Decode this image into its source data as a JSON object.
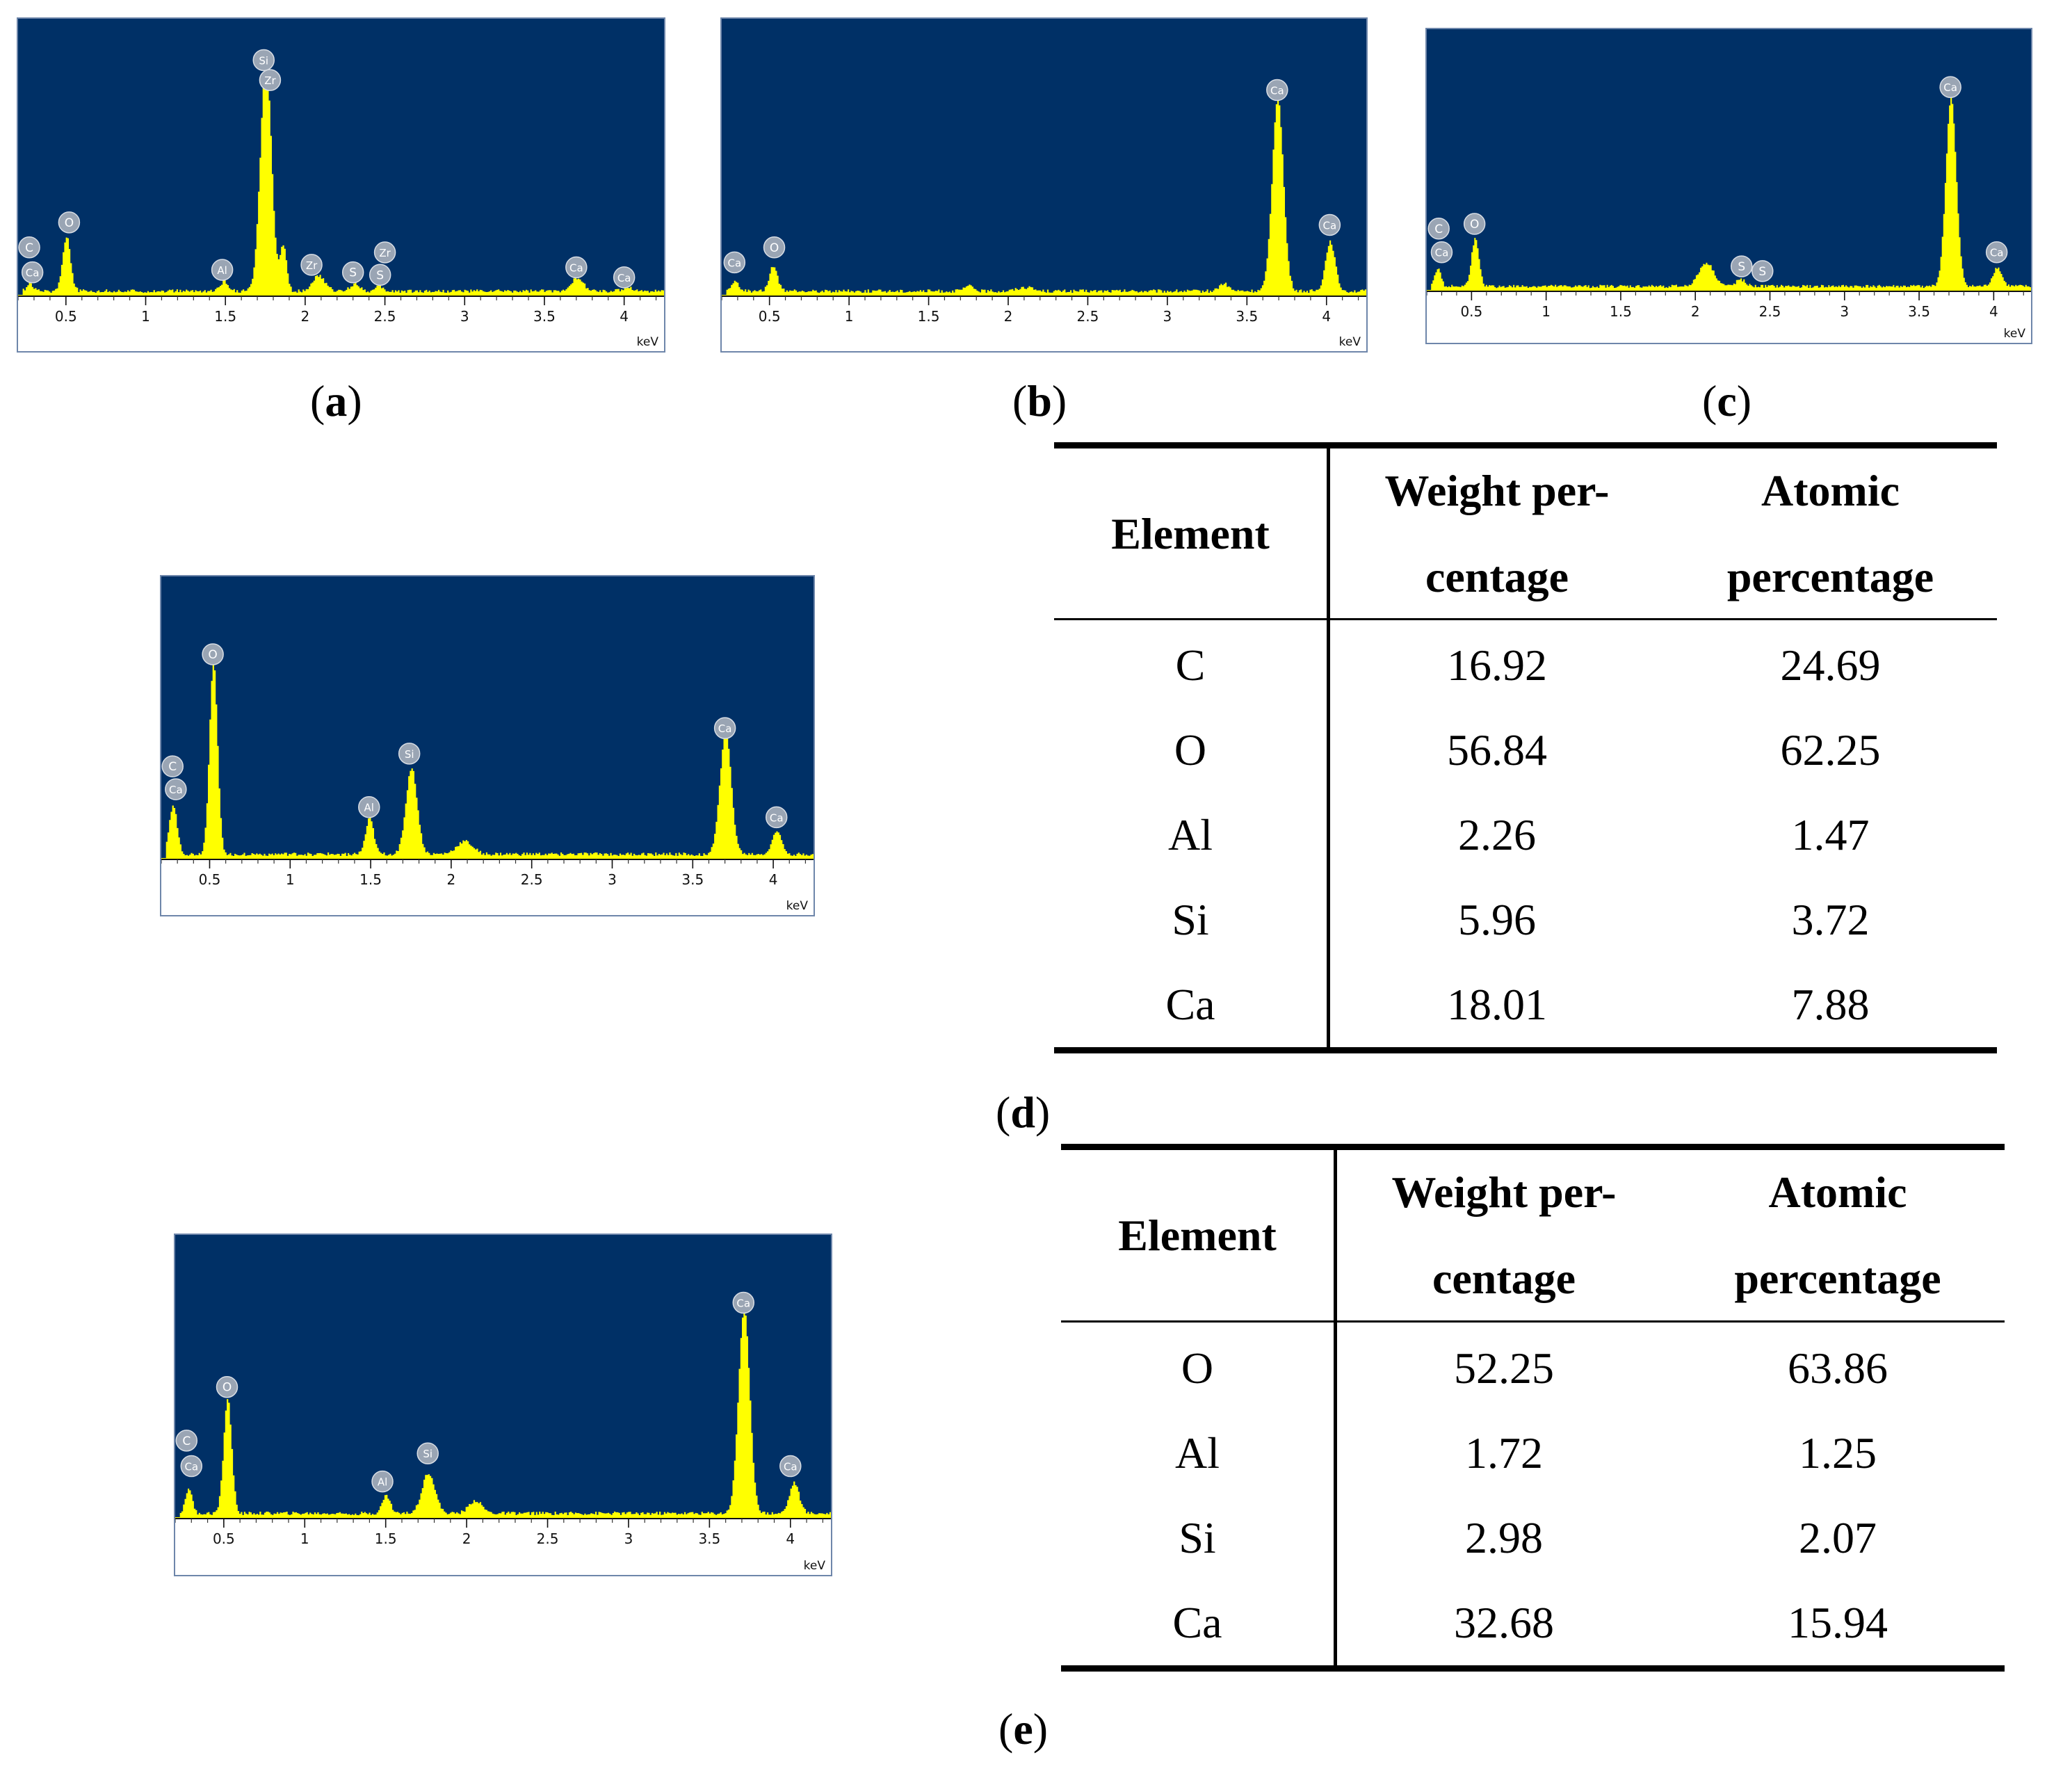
{
  "figure": {
    "panel_labels": [
      "a",
      "b",
      "c",
      "d",
      "e"
    ],
    "axis_unit": "keV"
  },
  "colors": {
    "plot_background": "#003066",
    "spectrum_fill": "#ffff00",
    "marker_fill": "#9aa5b4",
    "frame": "#6e86aa"
  },
  "chart_data": [
    {
      "id": "a",
      "type": "area",
      "title": "(a)",
      "xlabel": "keV",
      "ylabel": "",
      "xlim": [
        0.2,
        4.25
      ],
      "ylim": [
        0,
        100
      ],
      "ticks": [
        "0.5",
        "1",
        "1.5",
        "2",
        "2.5",
        "3",
        "3.5",
        "4"
      ],
      "peaks": [
        [
          0.27,
          3,
          0.02
        ],
        [
          0.5,
          22,
          0.025
        ],
        [
          1.49,
          4,
          0.025
        ],
        [
          1.75,
          92,
          0.035
        ],
        [
          1.86,
          18,
          0.02
        ],
        [
          2.08,
          6,
          0.04
        ],
        [
          2.31,
          3,
          0.03
        ],
        [
          2.46,
          2,
          0.02
        ],
        [
          3.7,
          5,
          0.04
        ],
        [
          4.02,
          1.5,
          0.03
        ]
      ],
      "markers": [
        {
          "label": "C",
          "x": 0.27,
          "y": 19
        },
        {
          "label": "Ca",
          "x": 0.29,
          "y": 9
        },
        {
          "label": "O",
          "x": 0.52,
          "y": 29
        },
        {
          "label": "Al",
          "x": 1.48,
          "y": 10
        },
        {
          "label": "Si",
          "x": 1.74,
          "y": 94
        },
        {
          "label": "Zr",
          "x": 1.78,
          "y": 86
        },
        {
          "label": "Zr",
          "x": 2.04,
          "y": 12
        },
        {
          "label": "S",
          "x": 2.3,
          "y": 9
        },
        {
          "label": "S",
          "x": 2.47,
          "y": 8
        },
        {
          "label": "Zr",
          "x": 2.5,
          "y": 17
        },
        {
          "label": "Ca",
          "x": 3.7,
          "y": 11
        },
        {
          "label": "Ca",
          "x": 4.0,
          "y": 7
        }
      ]
    },
    {
      "id": "b",
      "type": "area",
      "title": "(b)",
      "xlabel": "keV",
      "ylabel": "",
      "xlim": [
        0.2,
        4.25
      ],
      "ylim": [
        0,
        100
      ],
      "ticks": [
        "0.5",
        "1",
        "1.5",
        "2",
        "2.5",
        "3",
        "3.5",
        "4"
      ],
      "peaks": [
        [
          0.28,
          4,
          0.02
        ],
        [
          0.52,
          10,
          0.025
        ],
        [
          1.75,
          2,
          0.03
        ],
        [
          2.1,
          1.5,
          0.05
        ],
        [
          3.35,
          3,
          0.03
        ],
        [
          3.69,
          78,
          0.035
        ],
        [
          4.02,
          20,
          0.03
        ]
      ],
      "markers": [
        {
          "label": "Ca",
          "x": 0.28,
          "y": 13
        },
        {
          "label": "O",
          "x": 0.53,
          "y": 19
        },
        {
          "label": "Ca",
          "x": 3.69,
          "y": 82
        },
        {
          "label": "Ca",
          "x": 4.02,
          "y": 28
        }
      ]
    },
    {
      "id": "c",
      "type": "area",
      "title": "(c)",
      "xlabel": "keV",
      "ylabel": "",
      "xlim": [
        0.2,
        4.25
      ],
      "ylim": [
        0,
        100
      ],
      "ticks": [
        "0.5",
        "1",
        "1.5",
        "2",
        "2.5",
        "3",
        "3.5",
        "4"
      ],
      "peaks": [
        [
          0.27,
          8,
          0.02
        ],
        [
          0.52,
          20,
          0.025
        ],
        [
          2.07,
          10,
          0.05
        ],
        [
          2.3,
          3,
          0.03
        ],
        [
          3.71,
          80,
          0.035
        ],
        [
          4.02,
          8,
          0.03
        ]
      ],
      "markers": [
        {
          "label": "C",
          "x": 0.28,
          "y": 26
        },
        {
          "label": "Ca",
          "x": 0.3,
          "y": 16
        },
        {
          "label": "O",
          "x": 0.52,
          "y": 28
        },
        {
          "label": "S",
          "x": 2.31,
          "y": 10
        },
        {
          "label": "S",
          "x": 2.45,
          "y": 8
        },
        {
          "label": "Ca",
          "x": 3.71,
          "y": 86
        },
        {
          "label": "Ca",
          "x": 4.02,
          "y": 16
        }
      ]
    },
    {
      "id": "d",
      "type": "area",
      "title": "(d)",
      "xlabel": "keV",
      "ylabel": "",
      "xlim": [
        0.2,
        4.25
      ],
      "ylim": [
        0,
        100
      ],
      "ticks": [
        "0.5",
        "1",
        "1.5",
        "2",
        "2.5",
        "3",
        "3.5",
        "4"
      ],
      "peaks": [
        [
          0.27,
          19,
          0.025
        ],
        [
          0.52,
          76,
          0.025
        ],
        [
          1.49,
          14,
          0.025
        ],
        [
          1.75,
          34,
          0.035
        ],
        [
          2.08,
          5,
          0.05
        ],
        [
          3.7,
          48,
          0.035
        ],
        [
          4.02,
          9,
          0.03
        ]
      ],
      "markers": [
        {
          "label": "C",
          "x": 0.27,
          "y": 36
        },
        {
          "label": "Ca",
          "x": 0.29,
          "y": 27
        },
        {
          "label": "O",
          "x": 0.52,
          "y": 80
        },
        {
          "label": "Al",
          "x": 1.49,
          "y": 20
        },
        {
          "label": "Si",
          "x": 1.74,
          "y": 41
        },
        {
          "label": "Ca",
          "x": 3.7,
          "y": 51
        },
        {
          "label": "Ca",
          "x": 4.02,
          "y": 16
        }
      ]
    },
    {
      "id": "e",
      "type": "area",
      "title": "(e)",
      "xlabel": "keV",
      "ylabel": "",
      "xlim": [
        0.2,
        4.25
      ],
      "ylim": [
        0,
        100
      ],
      "ticks": [
        "0.5",
        "1",
        "1.5",
        "2",
        "2.5",
        "3",
        "3.5",
        "4"
      ],
      "peaks": [
        [
          0.28,
          10,
          0.02
        ],
        [
          0.52,
          45,
          0.025
        ],
        [
          1.5,
          7,
          0.025
        ],
        [
          1.76,
          16,
          0.04
        ],
        [
          2.05,
          5,
          0.04
        ],
        [
          3.71,
          80,
          0.035
        ],
        [
          4.02,
          12,
          0.03
        ]
      ],
      "markers": [
        {
          "label": "C",
          "x": 0.27,
          "y": 30
        },
        {
          "label": "Ca",
          "x": 0.3,
          "y": 20
        },
        {
          "label": "O",
          "x": 0.52,
          "y": 51
        },
        {
          "label": "Al",
          "x": 1.48,
          "y": 14
        },
        {
          "label": "Si",
          "x": 1.76,
          "y": 25
        },
        {
          "label": "Ca",
          "x": 3.71,
          "y": 84
        },
        {
          "label": "Ca",
          "x": 4.0,
          "y": 20
        }
      ]
    }
  ],
  "table_d": {
    "headers": [
      "Element",
      "Weight per-",
      "centage",
      "Atomic",
      "percentage"
    ],
    "rows": [
      [
        "C",
        "16.92",
        "24.69"
      ],
      [
        "O",
        "56.84",
        "62.25"
      ],
      [
        "Al",
        "2.26",
        "1.47"
      ],
      [
        "Si",
        "5.96",
        "3.72"
      ],
      [
        "Ca",
        "18.01",
        "7.88"
      ]
    ]
  },
  "table_e": {
    "headers": [
      "Element",
      "Weight per-",
      "centage",
      "Atomic",
      "percentage"
    ],
    "rows": [
      [
        "O",
        "52.25",
        "63.86"
      ],
      [
        "Al",
        "1.72",
        "1.25"
      ],
      [
        "Si",
        "2.98",
        "2.07"
      ],
      [
        "Ca",
        "32.68",
        "15.94"
      ]
    ]
  }
}
